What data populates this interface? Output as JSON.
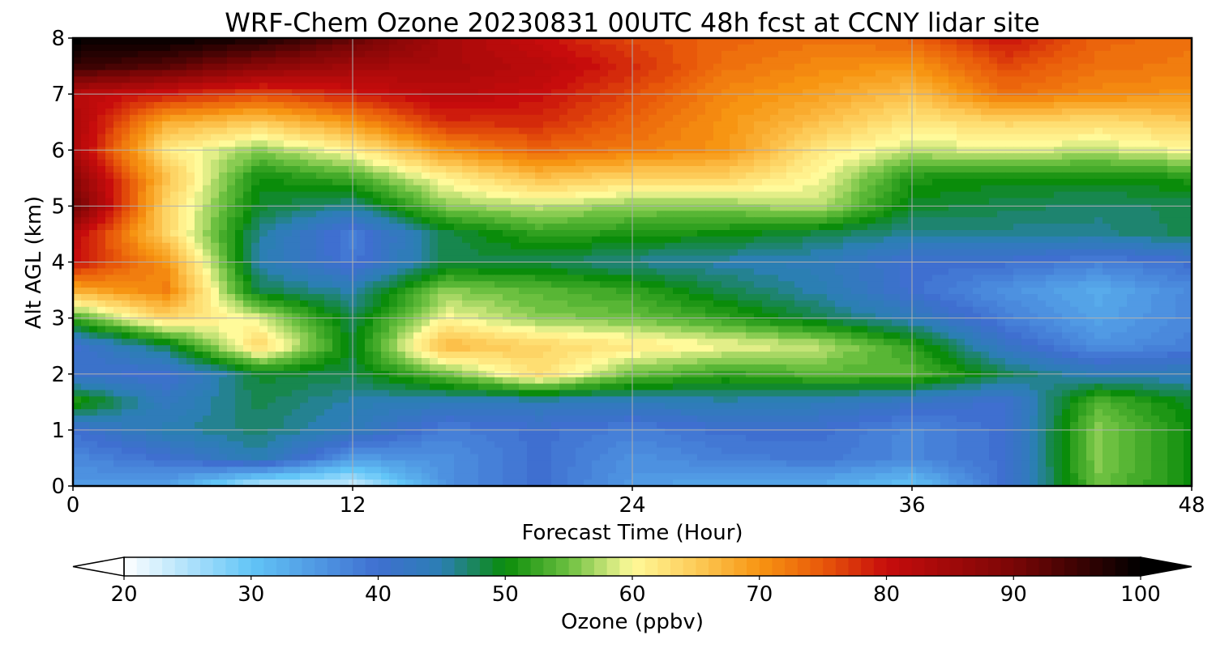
{
  "chart_data": {
    "type": "heatmap",
    "subtype": "filled-contour time-height cross section",
    "title": "WRF-Chem Ozone  20230831 00UTC 48h fcst at CCNY lidar site",
    "xlabel": "Forecast Time (Hour)",
    "ylabel": "Alt AGL (km)",
    "xlim": [
      0,
      48
    ],
    "ylim": [
      0,
      8
    ],
    "x_ticks": [
      0,
      12,
      24,
      36,
      48
    ],
    "y_ticks": [
      0,
      1,
      2,
      3,
      4,
      5,
      6,
      7,
      8
    ],
    "grid": true,
    "x": [
      0,
      4,
      8,
      12,
      16,
      20,
      24,
      28,
      32,
      36,
      40,
      44,
      48
    ],
    "y": [
      0,
      0.5,
      1,
      1.5,
      2,
      2.5,
      3,
      3.5,
      4,
      4.5,
      5,
      5.5,
      6,
      6.5,
      7,
      7.5,
      8
    ],
    "z": [
      [
        35,
        34,
        24,
        23,
        36,
        40,
        35,
        33,
        33,
        30,
        40,
        55,
        50
      ],
      [
        37,
        40,
        45,
        35,
        36,
        40,
        36,
        38,
        39,
        37,
        40,
        56,
        50
      ],
      [
        40,
        45,
        47,
        44,
        38,
        40,
        38,
        40,
        40,
        37,
        40,
        56,
        50
      ],
      [
        52,
        43,
        48,
        45,
        44,
        44,
        44,
        45,
        44,
        42,
        40,
        54,
        49
      ],
      [
        41,
        40,
        49,
        48,
        55,
        63,
        55,
        52,
        54,
        54,
        48,
        44,
        44
      ],
      [
        40,
        48,
        64,
        49,
        67,
        64,
        62,
        60,
        58,
        52,
        42,
        36,
        38
      ],
      [
        53,
        64,
        59,
        48,
        60,
        56,
        55,
        52,
        48,
        44,
        38,
        34,
        37
      ],
      [
        68,
        72,
        48,
        45,
        56,
        54,
        52,
        48,
        45,
        40,
        36,
        33,
        37
      ],
      [
        80,
        70,
        45,
        39,
        48,
        48,
        46,
        45,
        44,
        40,
        40,
        38,
        40
      ],
      [
        82,
        64,
        46,
        38,
        48,
        52,
        51,
        50,
        48,
        46,
        46,
        46,
        48
      ],
      [
        92,
        64,
        49,
        46,
        56,
        58,
        56,
        56,
        58,
        49,
        48,
        47,
        48
      ],
      [
        88,
        66,
        50,
        53,
        61,
        66,
        64,
        64,
        60,
        51,
        50,
        50,
        51
      ],
      [
        84,
        62,
        56,
        61,
        70,
        74,
        72,
        70,
        62,
        58,
        59,
        58,
        60
      ],
      [
        84,
        68,
        65,
        70,
        78,
        78,
        74,
        70,
        66,
        62,
        64,
        63,
        65
      ],
      [
        82,
        79,
        76,
        79,
        82,
        80,
        76,
        71,
        69,
        66,
        73,
        71,
        70
      ],
      [
        96,
        93,
        88,
        85,
        84,
        82,
        78,
        73,
        71,
        70,
        76,
        73,
        72
      ],
      [
        100,
        100,
        98,
        92,
        84,
        80,
        76,
        74,
        73,
        74,
        80,
        74,
        73
      ]
    ],
    "colorbar": {
      "label": "Ozone  (ppbv)",
      "min": 20,
      "max": 100,
      "ticks": [
        20,
        30,
        40,
        50,
        60,
        70,
        80,
        90,
        100
      ],
      "extend": "both",
      "color_stops": [
        {
          "v": 20,
          "c": "#ffffff"
        },
        {
          "v": 30,
          "c": "#62c5f7"
        },
        {
          "v": 40,
          "c": "#3f6fd0"
        },
        {
          "v": 45,
          "c": "#2b7fb3"
        },
        {
          "v": 50,
          "c": "#0a8c0a"
        },
        {
          "v": 55,
          "c": "#6cc040"
        },
        {
          "v": 60,
          "c": "#fffa9a"
        },
        {
          "v": 65,
          "c": "#fdcb58"
        },
        {
          "v": 70,
          "c": "#f79512"
        },
        {
          "v": 75,
          "c": "#e8580a"
        },
        {
          "v": 80,
          "c": "#c70c0c"
        },
        {
          "v": 90,
          "c": "#7a0606"
        },
        {
          "v": 100,
          "c": "#000000"
        }
      ]
    }
  }
}
